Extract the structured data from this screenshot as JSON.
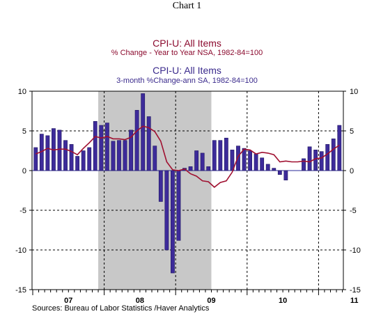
{
  "page_title": "Chart 1",
  "header": {
    "line1": "CPI-U: All Items",
    "line2": "% Change - Year to Year     NSA, 1982-84=100",
    "line3": "CPI-U: All Items",
    "line4": "3-month %Change-ann       SA, 1982-84=100"
  },
  "source": "Sources:  Bureau of Labor Statistics /Haver Analytics",
  "colors": {
    "bars": "#3d2b9a",
    "line": "#a01030",
    "recession": "#c8c8c8",
    "zero": "#2a2a9a"
  },
  "chart_data": {
    "type": "bar",
    "grid": true,
    "ylim": [
      -15,
      10
    ],
    "y_ticks": [
      "10",
      "5",
      "0",
      "-5",
      "-10",
      "-15"
    ],
    "y_tick_values": [
      10,
      5,
      0,
      -5,
      -10,
      -15
    ],
    "x_tick_labels": [
      "07",
      "08",
      "09",
      "10",
      "11"
    ],
    "recession_shading": {
      "from": "2007-12",
      "to": "2009-06"
    },
    "months": [
      "2007-01",
      "2007-02",
      "2007-03",
      "2007-04",
      "2007-05",
      "2007-06",
      "2007-07",
      "2007-08",
      "2007-09",
      "2007-10",
      "2007-11",
      "2007-12",
      "2008-01",
      "2008-02",
      "2008-03",
      "2008-04",
      "2008-05",
      "2008-06",
      "2008-07",
      "2008-08",
      "2008-09",
      "2008-10",
      "2008-11",
      "2008-12",
      "2009-01",
      "2009-02",
      "2009-03",
      "2009-04",
      "2009-05",
      "2009-06",
      "2009-07",
      "2009-08",
      "2009-09",
      "2009-10",
      "2009-11",
      "2009-12",
      "2010-01",
      "2010-02",
      "2010-03",
      "2010-04",
      "2010-05",
      "2010-06",
      "2010-07",
      "2010-08",
      "2010-09",
      "2010-10",
      "2010-11",
      "2010-12",
      "2011-01",
      "2011-02",
      "2011-03",
      "2011-04"
    ],
    "series": [
      {
        "kind": "bar",
        "values": [
          2.9,
          4.6,
          4.4,
          5.3,
          5.1,
          3.8,
          3.3,
          1.8,
          2.5,
          2.9,
          6.2,
          5.7,
          6.0,
          3.7,
          3.8,
          3.8,
          5.1,
          7.6,
          9.7,
          6.8,
          3.1,
          -3.9,
          -10.0,
          -12.9,
          -8.8,
          0.3,
          0.5,
          2.5,
          2.2,
          0.5,
          3.8,
          3.8,
          4.1,
          2.6,
          3.1,
          2.8,
          2.5,
          2.1,
          1.6,
          0.8,
          0.3,
          -0.5,
          -1.2,
          0.0,
          0.0,
          1.5,
          3.0,
          2.6,
          2.4,
          3.3,
          4.0,
          5.7
        ]
      },
      {
        "kind": "line",
        "values": [
          2.1,
          2.4,
          2.8,
          2.6,
          2.7,
          2.7,
          2.4,
          2.0,
          2.8,
          3.5,
          4.3,
          4.1,
          4.3,
          4.0,
          4.0,
          3.9,
          4.2,
          5.0,
          5.6,
          5.4,
          4.9,
          3.7,
          1.1,
          0.1,
          0.0,
          0.2,
          -0.4,
          -0.7,
          -1.3,
          -1.4,
          -2.1,
          -1.5,
          -1.3,
          -0.2,
          1.8,
          2.7,
          2.6,
          2.1,
          2.3,
          2.2,
          2.0,
          1.1,
          1.2,
          1.1,
          1.1,
          1.2,
          1.1,
          1.5,
          1.6,
          2.1,
          2.7,
          3.2
        ]
      }
    ]
  }
}
